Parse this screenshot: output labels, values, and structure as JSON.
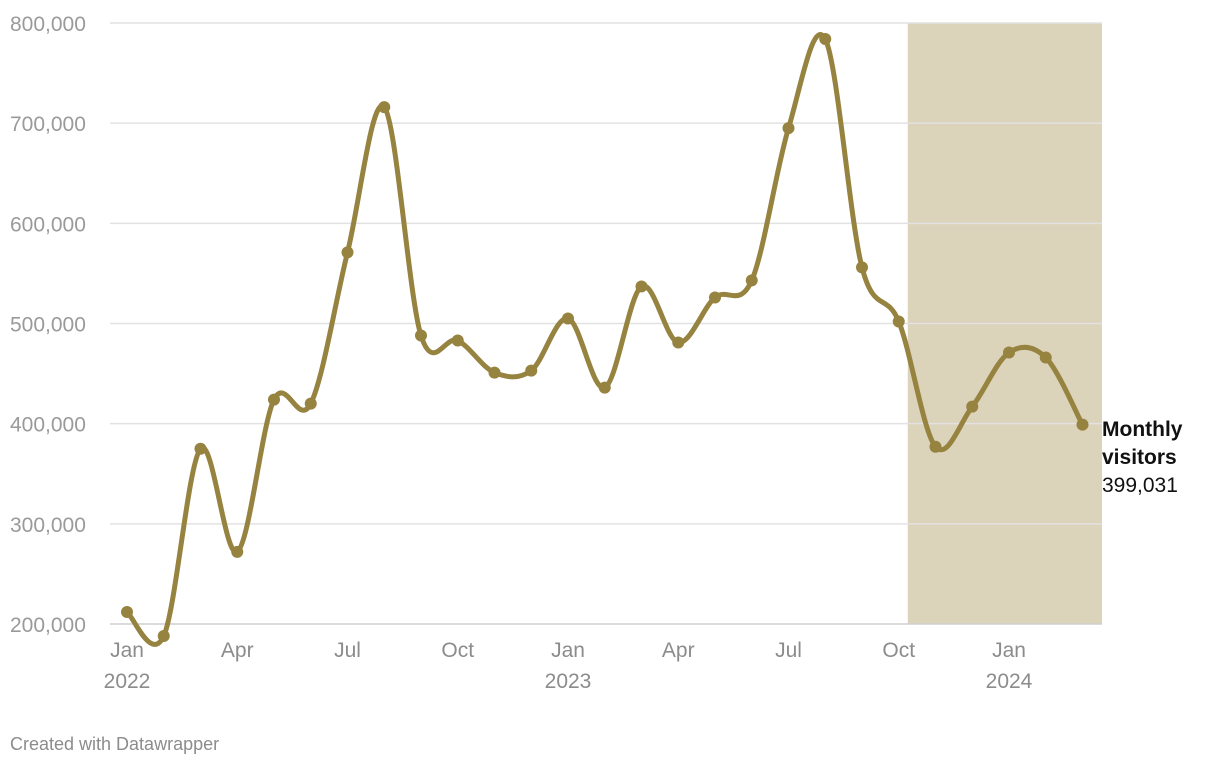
{
  "chart_data": {
    "type": "line",
    "title": "",
    "xlabel": "",
    "ylabel": "",
    "ylim": [
      200000,
      800000
    ],
    "y_ticks": [
      {
        "value": 200000,
        "label": "200,000"
      },
      {
        "value": 300000,
        "label": "300,000"
      },
      {
        "value": 400000,
        "label": "400,000"
      },
      {
        "value": 500000,
        "label": "500,000"
      },
      {
        "value": 600000,
        "label": "600,000"
      },
      {
        "value": 700000,
        "label": "700,000"
      },
      {
        "value": 800000,
        "label": "800,000"
      }
    ],
    "x_ticks": [
      {
        "date": "2022-01",
        "label": "Jan",
        "sublabel": "2022"
      },
      {
        "date": "2022-04",
        "label": "Apr",
        "sublabel": ""
      },
      {
        "date": "2022-07",
        "label": "Jul",
        "sublabel": ""
      },
      {
        "date": "2022-10",
        "label": "Oct",
        "sublabel": ""
      },
      {
        "date": "2023-01",
        "label": "Jan",
        "sublabel": "2023"
      },
      {
        "date": "2023-04",
        "label": "Apr",
        "sublabel": ""
      },
      {
        "date": "2023-07",
        "label": "Jul",
        "sublabel": ""
      },
      {
        "date": "2023-10",
        "label": "Oct",
        "sublabel": ""
      },
      {
        "date": "2024-01",
        "label": "Jan",
        "sublabel": "2024"
      }
    ],
    "highlight_range": {
      "start": "2023-10",
      "end": "2024-03",
      "color": "#dcd3bb"
    },
    "grid": true,
    "line_color": "#968340",
    "series": [
      {
        "name": "Monthly visitors",
        "points": [
          {
            "date": "2022-01",
            "value": 212000
          },
          {
            "date": "2022-02",
            "value": 188000
          },
          {
            "date": "2022-03",
            "value": 375000
          },
          {
            "date": "2022-04",
            "value": 272000
          },
          {
            "date": "2022-05",
            "value": 424000
          },
          {
            "date": "2022-06",
            "value": 420000
          },
          {
            "date": "2022-07",
            "value": 571000
          },
          {
            "date": "2022-08",
            "value": 716000
          },
          {
            "date": "2022-09",
            "value": 488000
          },
          {
            "date": "2022-10",
            "value": 483000
          },
          {
            "date": "2022-11",
            "value": 451000
          },
          {
            "date": "2022-12",
            "value": 453000
          },
          {
            "date": "2023-01",
            "value": 505000
          },
          {
            "date": "2023-02",
            "value": 436000
          },
          {
            "date": "2023-03",
            "value": 537000
          },
          {
            "date": "2023-04",
            "value": 481000
          },
          {
            "date": "2023-05",
            "value": 526000
          },
          {
            "date": "2023-06",
            "value": 543000
          },
          {
            "date": "2023-07",
            "value": 695000
          },
          {
            "date": "2023-08",
            "value": 784000
          },
          {
            "date": "2023-09",
            "value": 556000
          },
          {
            "date": "2023-10",
            "value": 502000
          },
          {
            "date": "2023-11",
            "value": 377000
          },
          {
            "date": "2023-12",
            "value": 417000
          },
          {
            "date": "2024-01",
            "value": 471000
          },
          {
            "date": "2024-02",
            "value": 466000
          },
          {
            "date": "2024-03",
            "value": 399031
          }
        ]
      }
    ],
    "end_label": {
      "name_line1": "Monthly",
      "name_line2": "visitors",
      "value": "399,031"
    }
  },
  "footer": {
    "credit": "Created with Datawrapper"
  }
}
